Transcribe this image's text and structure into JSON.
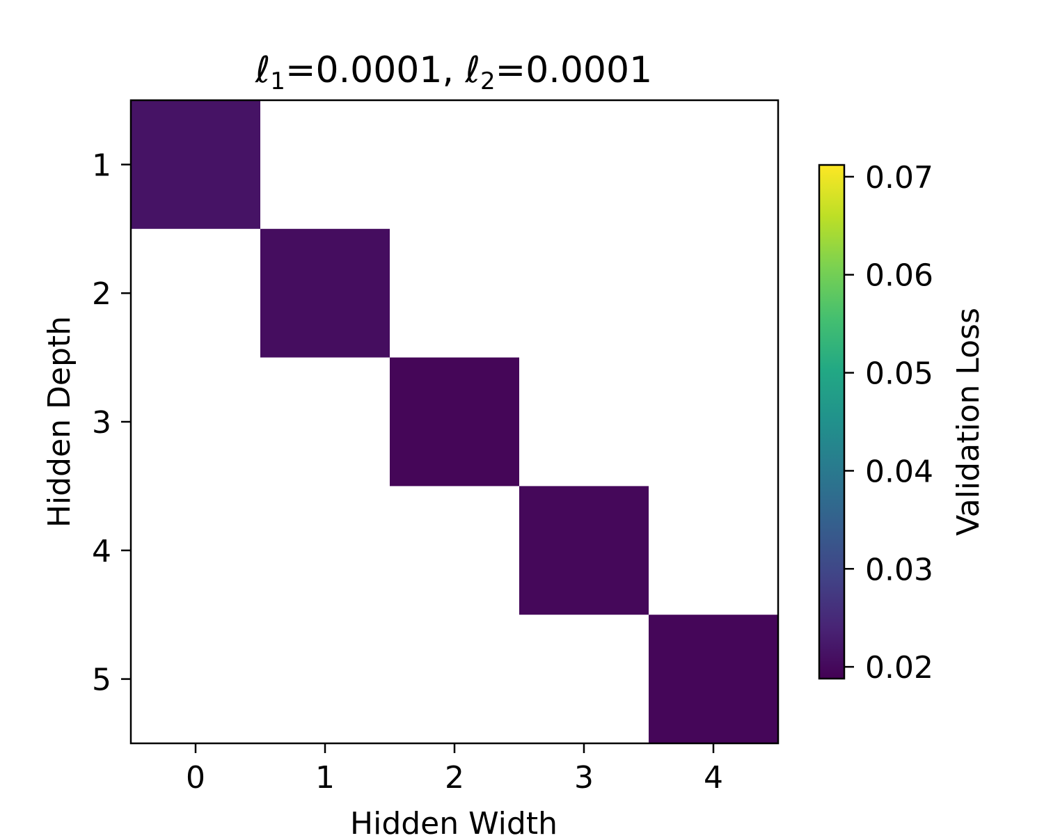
{
  "chart_data": {
    "type": "heatmap",
    "title": {
      "l1_symbol": "ℓ",
      "l1_sub": "1",
      "l1_value": "=0.0001, ",
      "l2_symbol": "ℓ",
      "l2_sub": "2",
      "l2_value": "=0.0001"
    },
    "xlabel": "Hidden Width",
    "ylabel": "Hidden Depth",
    "x_categories": [
      "0",
      "1",
      "2",
      "3",
      "4"
    ],
    "y_categories": [
      "1",
      "2",
      "3",
      "4",
      "5"
    ],
    "cells": [
      {
        "x": "0",
        "y": "1",
        "value": 0.0215
      },
      {
        "x": "1",
        "y": "2",
        "value": 0.0206
      },
      {
        "x": "2",
        "y": "3",
        "value": 0.0195
      },
      {
        "x": "3",
        "y": "4",
        "value": 0.0198
      },
      {
        "x": "4",
        "y": "5",
        "value": 0.0196
      }
    ],
    "missing_cell_color": "#ffffff",
    "colormap": "viridis",
    "colorbar": {
      "label": "Validation Loss",
      "range": [
        0.0188,
        0.0712
      ],
      "ticks": [
        "0.02",
        "0.03",
        "0.04",
        "0.05",
        "0.06",
        "0.07"
      ]
    },
    "grid": false
  }
}
